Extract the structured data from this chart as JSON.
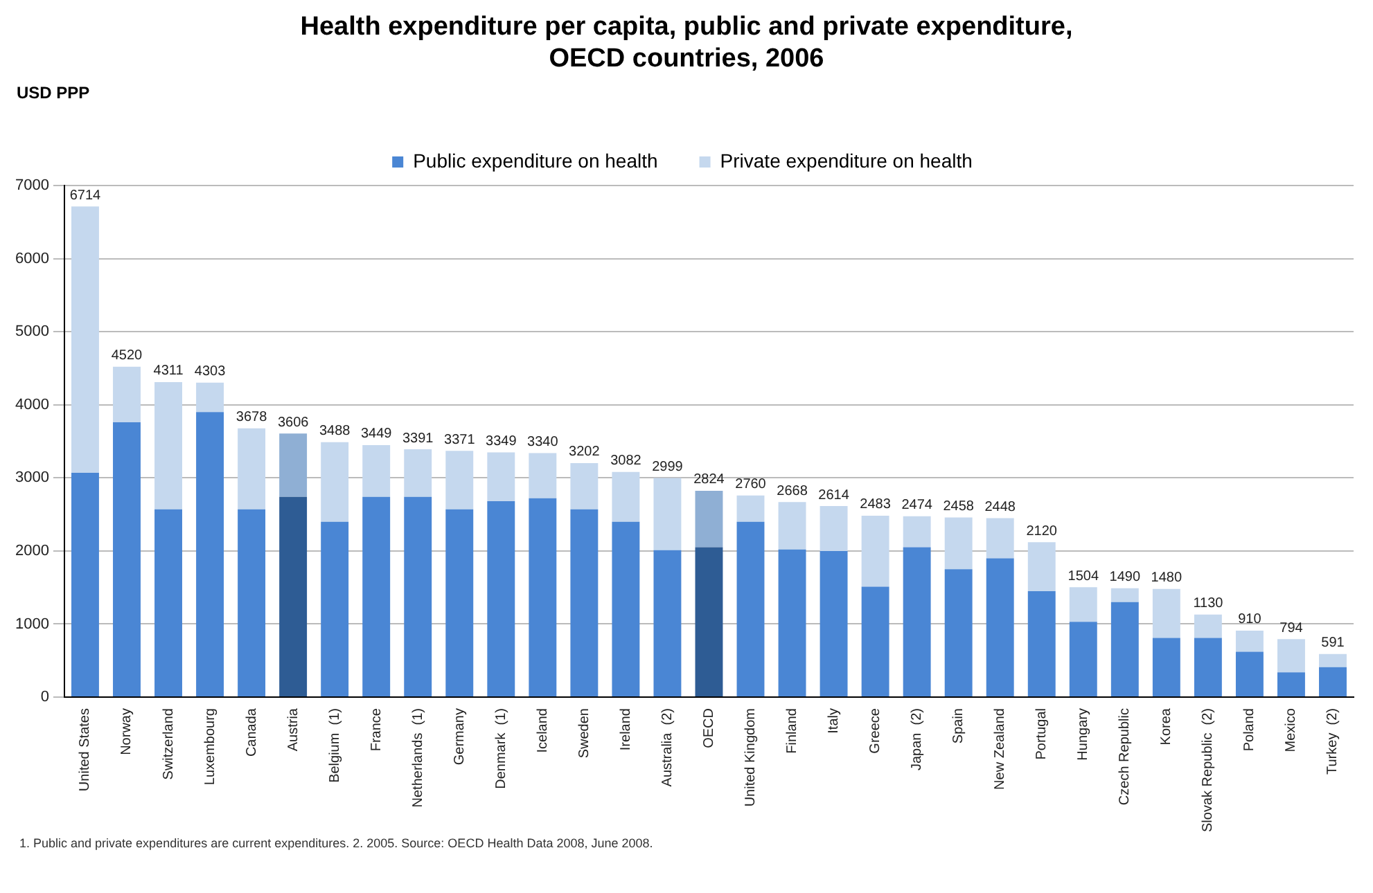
{
  "chart_data": {
    "type": "bar",
    "stacked": true,
    "title": "Health expenditure per capita, public and private expenditure,\nOECD countries, 2006",
    "ylabel": "USD PPP",
    "categories": [
      "United States",
      "Norway",
      "Switzerland",
      "Luxembourg",
      "Canada",
      "Austria",
      "Belgium  (1)",
      "France",
      "Netherlands  (1)",
      "Germany",
      "Denmark  (1)",
      "Iceland",
      "Sweden",
      "Ireland",
      "Australia  (2)",
      "OECD",
      "United Kingdom",
      "Finland",
      "Italy",
      "Greece",
      "Japan  (2)",
      "Spain",
      "New Zealand",
      "Portugal",
      "Hungary",
      "Czech Republic",
      "Korea",
      "Slovak Republic  (2)",
      "Poland",
      "Mexico",
      "Turkey  (2)"
    ],
    "series": [
      {
        "name": "Public expenditure on health",
        "color": "#4a86d4",
        "colors": [
          "#4a86d4",
          "#4a86d4",
          "#4a86d4",
          "#4a86d4",
          "#4a86d4",
          "#2e5c94",
          "#4a86d4",
          "#4a86d4",
          "#4a86d4",
          "#4a86d4",
          "#4a86d4",
          "#4a86d4",
          "#4a86d4",
          "#4a86d4",
          "#4a86d4",
          "#2e5c94",
          "#4a86d4",
          "#4a86d4",
          "#4a86d4",
          "#4a86d4",
          "#4a86d4",
          "#4a86d4",
          "#4a86d4",
          "#4a86d4",
          "#4a86d4",
          "#4a86d4",
          "#4a86d4",
          "#4a86d4",
          "#4a86d4",
          "#4a86d4",
          "#4a86d4"
        ],
        "values": [
          3070,
          3760,
          2570,
          3900,
          2570,
          2740,
          2400,
          2740,
          2740,
          2570,
          2680,
          2720,
          2570,
          2400,
          2010,
          2050,
          2400,
          2020,
          2000,
          1510,
          2050,
          1750,
          1900,
          1450,
          1030,
          1300,
          810,
          810,
          620,
          340,
          410
        ]
      },
      {
        "name": "Private expenditure on health",
        "color": "#c5d8ee",
        "colors": [
          "#c5d8ee",
          "#c5d8ee",
          "#c5d8ee",
          "#c5d8ee",
          "#c5d8ee",
          "#8fafd4",
          "#c5d8ee",
          "#c5d8ee",
          "#c5d8ee",
          "#c5d8ee",
          "#c5d8ee",
          "#c5d8ee",
          "#c5d8ee",
          "#c5d8ee",
          "#c5d8ee",
          "#8fafd4",
          "#c5d8ee",
          "#c5d8ee",
          "#c5d8ee",
          "#c5d8ee",
          "#c5d8ee",
          "#c5d8ee",
          "#c5d8ee",
          "#c5d8ee",
          "#c5d8ee",
          "#c5d8ee",
          "#c5d8ee",
          "#c5d8ee",
          "#c5d8ee",
          "#c5d8ee",
          "#c5d8ee"
        ],
        "values": [
          3644,
          760,
          1741,
          403,
          1108,
          866,
          1088,
          709,
          651,
          801,
          669,
          620,
          632,
          682,
          989,
          774,
          360,
          648,
          614,
          973,
          424,
          708,
          548,
          670,
          474,
          190,
          670,
          320,
          290,
          454,
          181
        ]
      }
    ],
    "totals": [
      "6714",
      "4520",
      "4311",
      "4303",
      "3678",
      "3606",
      "3488",
      "3449",
      "3391",
      "3371",
      "3349",
      "3340",
      "3202",
      "3082",
      "2999",
      "2824",
      "2760",
      "2668",
      "2614",
      "2483",
      "2474",
      "2458",
      "2448",
      "2120",
      "1504",
      "1490",
      "1480",
      "1130",
      "910",
      "794",
      "591"
    ],
    "ylim": [
      0,
      7000
    ],
    "yticks": [
      0,
      1000,
      2000,
      3000,
      4000,
      5000,
      6000,
      7000
    ],
    "grid": "y",
    "legend": "top",
    "annotations": [
      "1. Public and private expenditures are current expenditures.    2. 2005.    Source: OECD Health Data 2008, June 2008."
    ]
  }
}
